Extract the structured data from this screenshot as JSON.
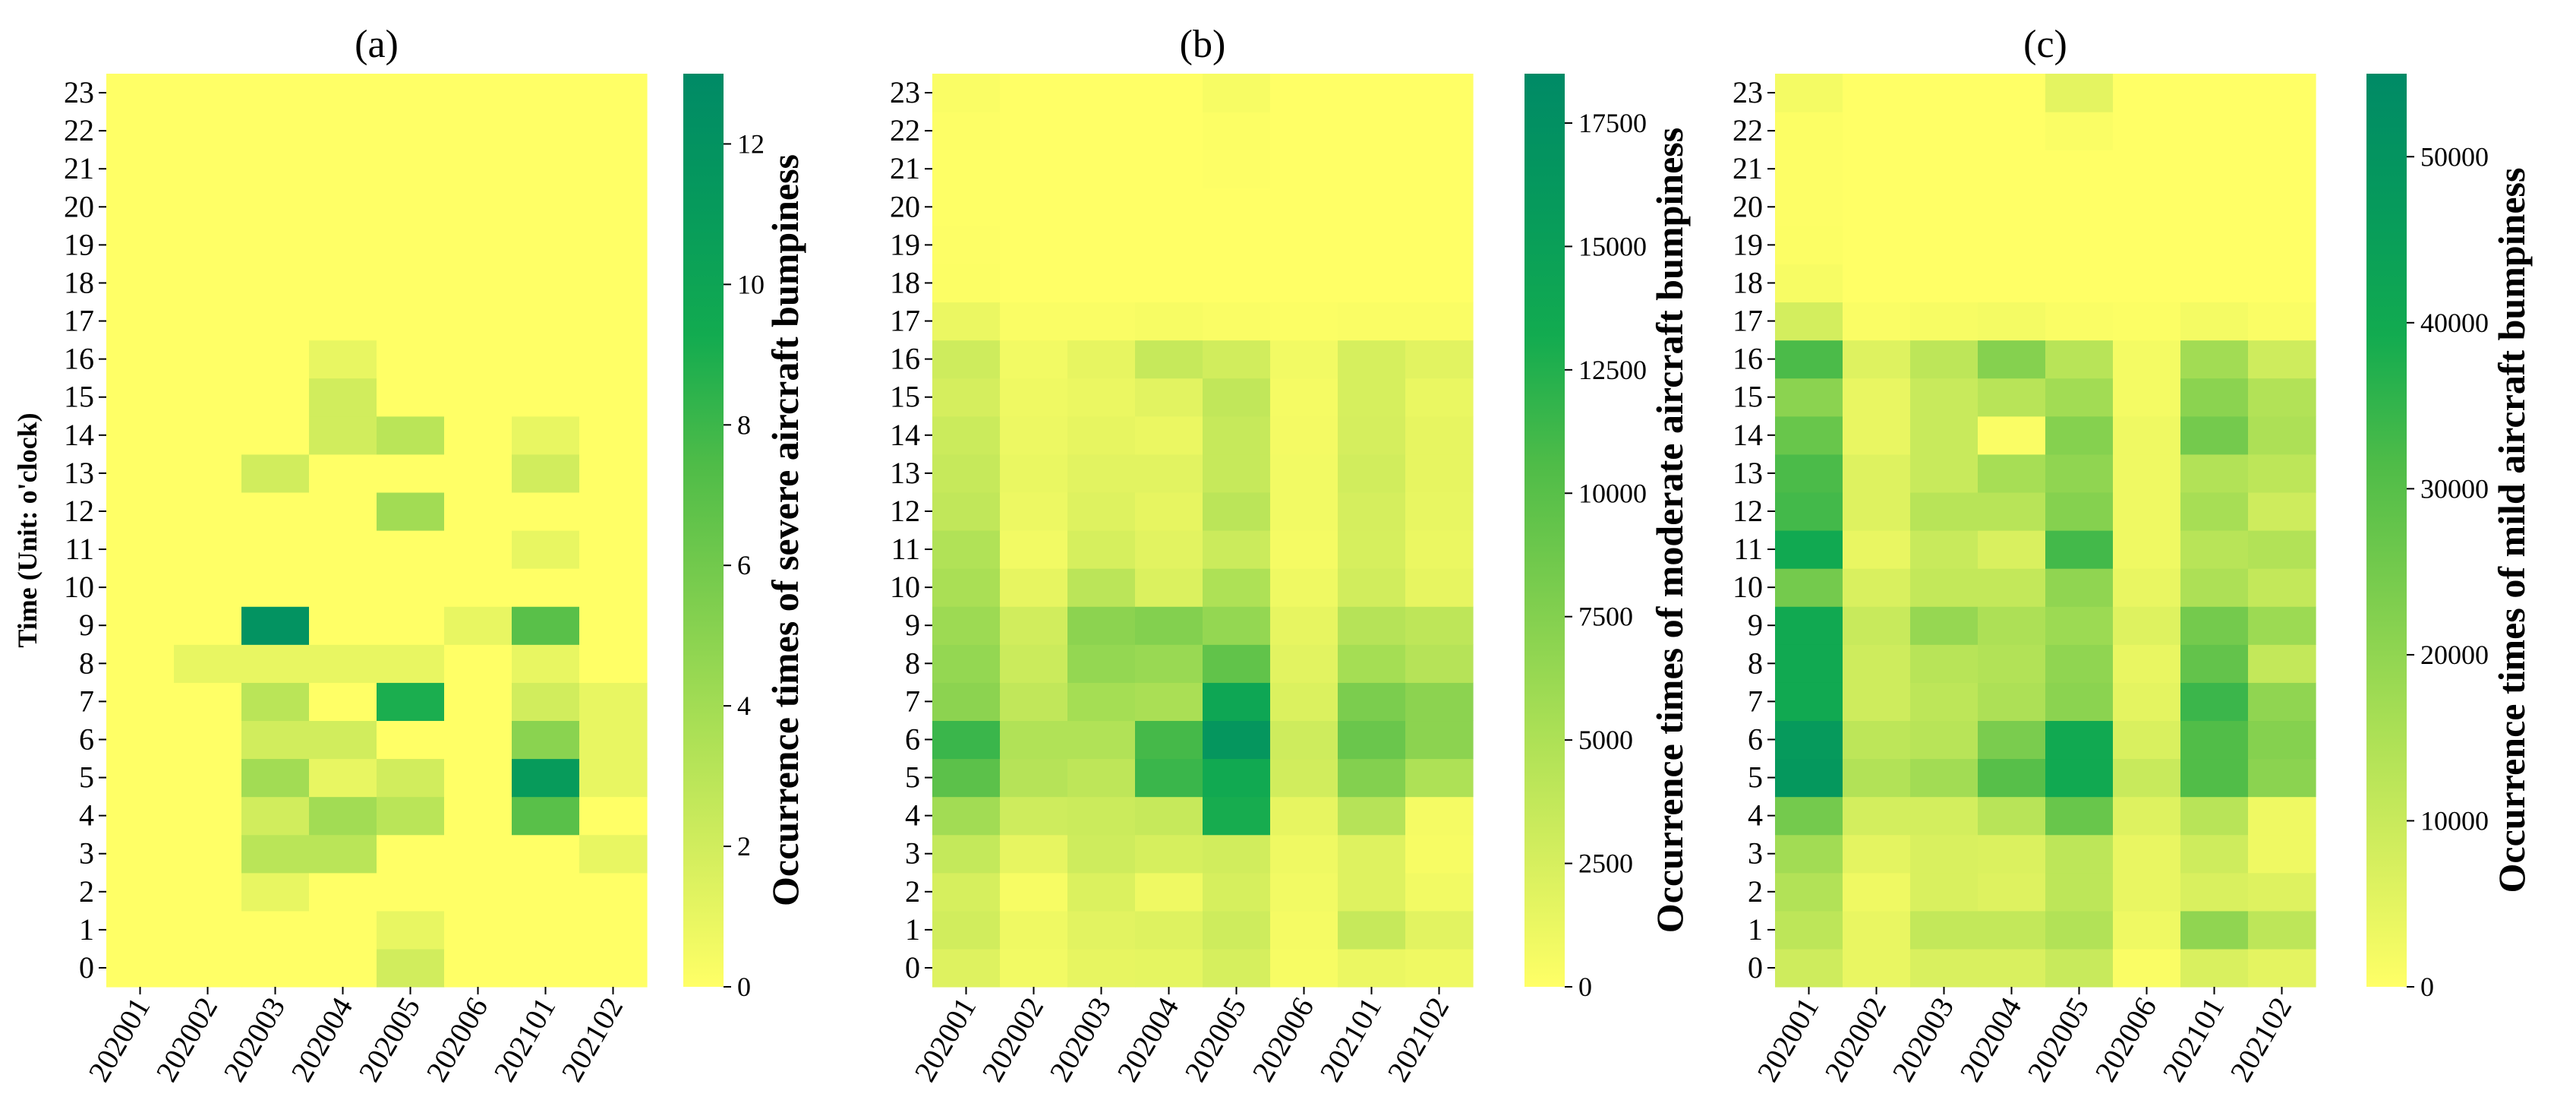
{
  "chart_data": [
    {
      "type": "heatmap",
      "title": "(a)",
      "ylabel": "Time (Unit: o'clock)",
      "colorbar_label": "Occurrence times of severe aircraft bumpiness",
      "vmin": 0,
      "vmax": 13,
      "colorbar_ticks": [
        "0",
        "2",
        "4",
        "6",
        "8",
        "10",
        "12"
      ],
      "colorbar_tick_values": [
        0,
        2,
        4,
        6,
        8,
        10,
        12
      ],
      "colormap": [
        "#ffff66",
        "#d4ee5e",
        "#a9df55",
        "#7ccd4e",
        "#4fbc48",
        "#12ab50",
        "#069a5c",
        "#008a66"
      ],
      "x_categories": [
        "202001",
        "202002",
        "202003",
        "202004",
        "202005",
        "202006",
        "202101",
        "202102"
      ],
      "y_categories": [
        "0",
        "1",
        "2",
        "3",
        "4",
        "5",
        "6",
        "7",
        "8",
        "9",
        "10",
        "11",
        "12",
        "13",
        "14",
        "15",
        "16",
        "17",
        "18",
        "19",
        "20",
        "21",
        "22",
        "23"
      ],
      "values": [
        [
          0,
          0,
          0,
          0,
          0,
          0,
          0,
          0,
          0,
          0,
          0,
          0,
          0,
          0,
          0,
          0,
          0,
          0,
          0,
          0,
          0,
          0,
          0,
          0
        ],
        [
          0,
          0,
          0,
          0,
          0,
          0,
          0,
          0,
          1,
          0,
          0,
          0,
          0,
          0,
          0,
          0,
          0,
          0,
          0,
          0,
          0,
          0,
          0,
          0
        ],
        [
          0,
          0,
          1,
          3,
          2,
          4,
          2,
          3,
          1,
          12,
          0,
          0,
          0,
          2,
          0,
          0,
          0,
          0,
          0,
          0,
          0,
          0,
          0,
          0
        ],
        [
          0,
          0,
          0,
          3,
          4,
          1,
          2,
          0,
          1,
          0,
          0,
          0,
          0,
          0,
          2,
          2,
          1,
          0,
          0,
          0,
          0,
          0,
          0,
          0
        ],
        [
          2,
          1,
          0,
          0,
          3,
          2,
          0,
          9,
          1,
          0,
          0,
          0,
          4,
          0,
          3,
          0,
          0,
          0,
          0,
          0,
          0,
          0,
          0,
          0
        ],
        [
          0,
          0,
          0,
          0,
          0,
          0,
          0,
          0,
          0,
          1,
          0,
          0,
          0,
          0,
          0,
          0,
          0,
          0,
          0,
          0,
          0,
          0,
          0,
          0
        ],
        [
          0,
          0,
          0,
          0,
          7,
          11,
          5,
          2,
          1,
          7,
          0,
          1,
          0,
          2,
          1,
          0,
          0,
          0,
          0,
          0,
          0,
          0,
          0,
          0
        ],
        [
          0,
          0,
          0,
          1,
          0,
          1,
          1,
          1,
          0,
          0,
          0,
          0,
          0,
          0,
          0,
          0,
          0,
          0,
          0,
          0,
          0,
          0,
          0,
          0
        ]
      ]
    },
    {
      "type": "heatmap",
      "title": "(b)",
      "colorbar_label": "Occurrence times of moderate aircraft bumpiness",
      "vmin": 0,
      "vmax": 18500,
      "colorbar_ticks": [
        "0",
        "2500",
        "5000",
        "7500",
        "10000",
        "12500",
        "15000",
        "17500"
      ],
      "colorbar_tick_values": [
        0,
        2500,
        5000,
        7500,
        10000,
        12500,
        15000,
        17500
      ],
      "colormap": [
        "#ffff66",
        "#d4ee5e",
        "#a9df55",
        "#7ccd4e",
        "#4fbc48",
        "#12ab50",
        "#069a5c",
        "#008a66"
      ],
      "x_categories": [
        "202001",
        "202002",
        "202003",
        "202004",
        "202005",
        "202006",
        "202101",
        "202102"
      ],
      "y_categories": [
        "0",
        "1",
        "2",
        "3",
        "4",
        "5",
        "6",
        "7",
        "8",
        "9",
        "10",
        "11",
        "12",
        "13",
        "14",
        "15",
        "16",
        "17",
        "18",
        "19",
        "20",
        "21",
        "22",
        "23"
      ],
      "values": [
        [
          2000,
          2800,
          2500,
          3600,
          5700,
          9800,
          11500,
          7000,
          6500,
          6000,
          5200,
          4800,
          3800,
          3500,
          3200,
          2600,
          3000,
          1200,
          200,
          100,
          50,
          50,
          100,
          300
        ],
        [
          800,
          1000,
          500,
          1500,
          3000,
          4500,
          4800,
          3800,
          3200,
          2800,
          1500,
          800,
          1100,
          1300,
          1100,
          1000,
          800,
          300,
          0,
          0,
          0,
          0,
          0,
          0
        ],
        [
          1500,
          1800,
          2200,
          3000,
          3200,
          4000,
          4800,
          5500,
          6500,
          7000,
          4200,
          2500,
          2000,
          1800,
          1500,
          1200,
          1500,
          300,
          0,
          0,
          0,
          0,
          0,
          0
        ],
        [
          1600,
          2000,
          1000,
          2500,
          3500,
          11500,
          11000,
          5200,
          6200,
          7500,
          2200,
          1800,
          1500,
          1800,
          1200,
          1800,
          3500,
          500,
          0,
          0,
          0,
          0,
          0,
          0
        ],
        [
          2500,
          3000,
          2500,
          2800,
          13000,
          13500,
          16500,
          14000,
          9500,
          6500,
          5000,
          3200,
          4200,
          3500,
          3500,
          3800,
          2800,
          300,
          0,
          0,
          0,
          100,
          200,
          500
        ],
        [
          500,
          600,
          800,
          1000,
          1500,
          2800,
          3000,
          2200,
          1800,
          1500,
          1000,
          600,
          800,
          800,
          700,
          600,
          800,
          200,
          0,
          0,
          0,
          0,
          0,
          0
        ],
        [
          1200,
          3500,
          2000,
          2000,
          4500,
          7500,
          9000,
          8000,
          5500,
          4500,
          2800,
          2500,
          2600,
          2800,
          2600,
          2500,
          2500,
          300,
          0,
          0,
          0,
          0,
          0,
          0
        ],
        [
          1000,
          1800,
          800,
          500,
          600,
          5000,
          7000,
          7000,
          4500,
          4000,
          1500,
          1200,
          1400,
          1500,
          1500,
          1300,
          1800,
          300,
          0,
          0,
          0,
          0,
          0,
          0
        ]
      ]
    },
    {
      "type": "heatmap",
      "title": "(c)",
      "colorbar_label": "Occurrence times of mild aircraft bumpiness",
      "vmin": 0,
      "vmax": 55000,
      "colorbar_ticks": [
        "0",
        "10000",
        "20000",
        "30000",
        "40000",
        "50000"
      ],
      "colorbar_tick_values": [
        0,
        10000,
        20000,
        30000,
        40000,
        50000
      ],
      "colormap": [
        "#ffff66",
        "#d4ee5e",
        "#a9df55",
        "#7ccd4e",
        "#4fbc48",
        "#12ab50",
        "#069a5c",
        "#008a66"
      ],
      "x_categories": [
        "202001",
        "202002",
        "202003",
        "202004",
        "202005",
        "202006",
        "202101",
        "202102"
      ],
      "y_categories": [
        "0",
        "1",
        "2",
        "3",
        "4",
        "5",
        "6",
        "7",
        "8",
        "9",
        "10",
        "11",
        "12",
        "13",
        "14",
        "15",
        "16",
        "17",
        "18",
        "19",
        "20",
        "21",
        "22",
        "23"
      ],
      "values": [
        [
          9000,
          12000,
          14000,
          17000,
          25000,
          48000,
          47000,
          40000,
          40000,
          40000,
          25000,
          40000,
          33000,
          32000,
          27000,
          21000,
          32000,
          8000,
          1500,
          500,
          300,
          300,
          500,
          2000
        ],
        [
          4000,
          4000,
          3000,
          5000,
          8000,
          14000,
          12000,
          9000,
          9000,
          10000,
          7000,
          4000,
          6000,
          6000,
          4000,
          4000,
          6000,
          1000,
          0,
          0,
          0,
          0,
          0,
          0
        ],
        [
          7000,
          11000,
          7000,
          7000,
          8000,
          17000,
          13000,
          12000,
          13000,
          19000,
          11000,
          10000,
          13000,
          10000,
          10000,
          10000,
          12000,
          1500,
          0,
          0,
          0,
          0,
          0,
          0
        ],
        [
          7000,
          11000,
          6000,
          6500,
          13000,
          30000,
          24000,
          15000,
          14000,
          15000,
          11000,
          7000,
          13000,
          16000,
          1000,
          13000,
          22000,
          2000,
          0,
          0,
          0,
          0,
          0,
          0
        ],
        [
          10000,
          14000,
          12000,
          12000,
          27000,
          40000,
          40000,
          21000,
          20000,
          18000,
          20000,
          33000,
          22000,
          20000,
          22000,
          17000,
          13000,
          1000,
          0,
          0,
          0,
          0,
          1000,
          5000
        ],
        [
          1000,
          3000,
          4000,
          4000,
          6000,
          10000,
          7000,
          5000,
          4000,
          6000,
          4000,
          3000,
          3000,
          3000,
          3000,
          2000,
          2000,
          500,
          0,
          0,
          0,
          0,
          0,
          0
        ],
        [
          7000,
          20000,
          7000,
          9000,
          13000,
          31000,
          31000,
          34000,
          28000,
          25000,
          15000,
          13000,
          16000,
          14000,
          25000,
          21000,
          17000,
          2000,
          0,
          0,
          0,
          0,
          0,
          0
        ],
        [
          5000,
          12000,
          6000,
          3000,
          3000,
          21000,
          22000,
          20000,
          11000,
          18000,
          11000,
          14000,
          9000,
          12000,
          15000,
          14000,
          9000,
          1000,
          0,
          0,
          0,
          0,
          0,
          0
        ]
      ]
    }
  ]
}
